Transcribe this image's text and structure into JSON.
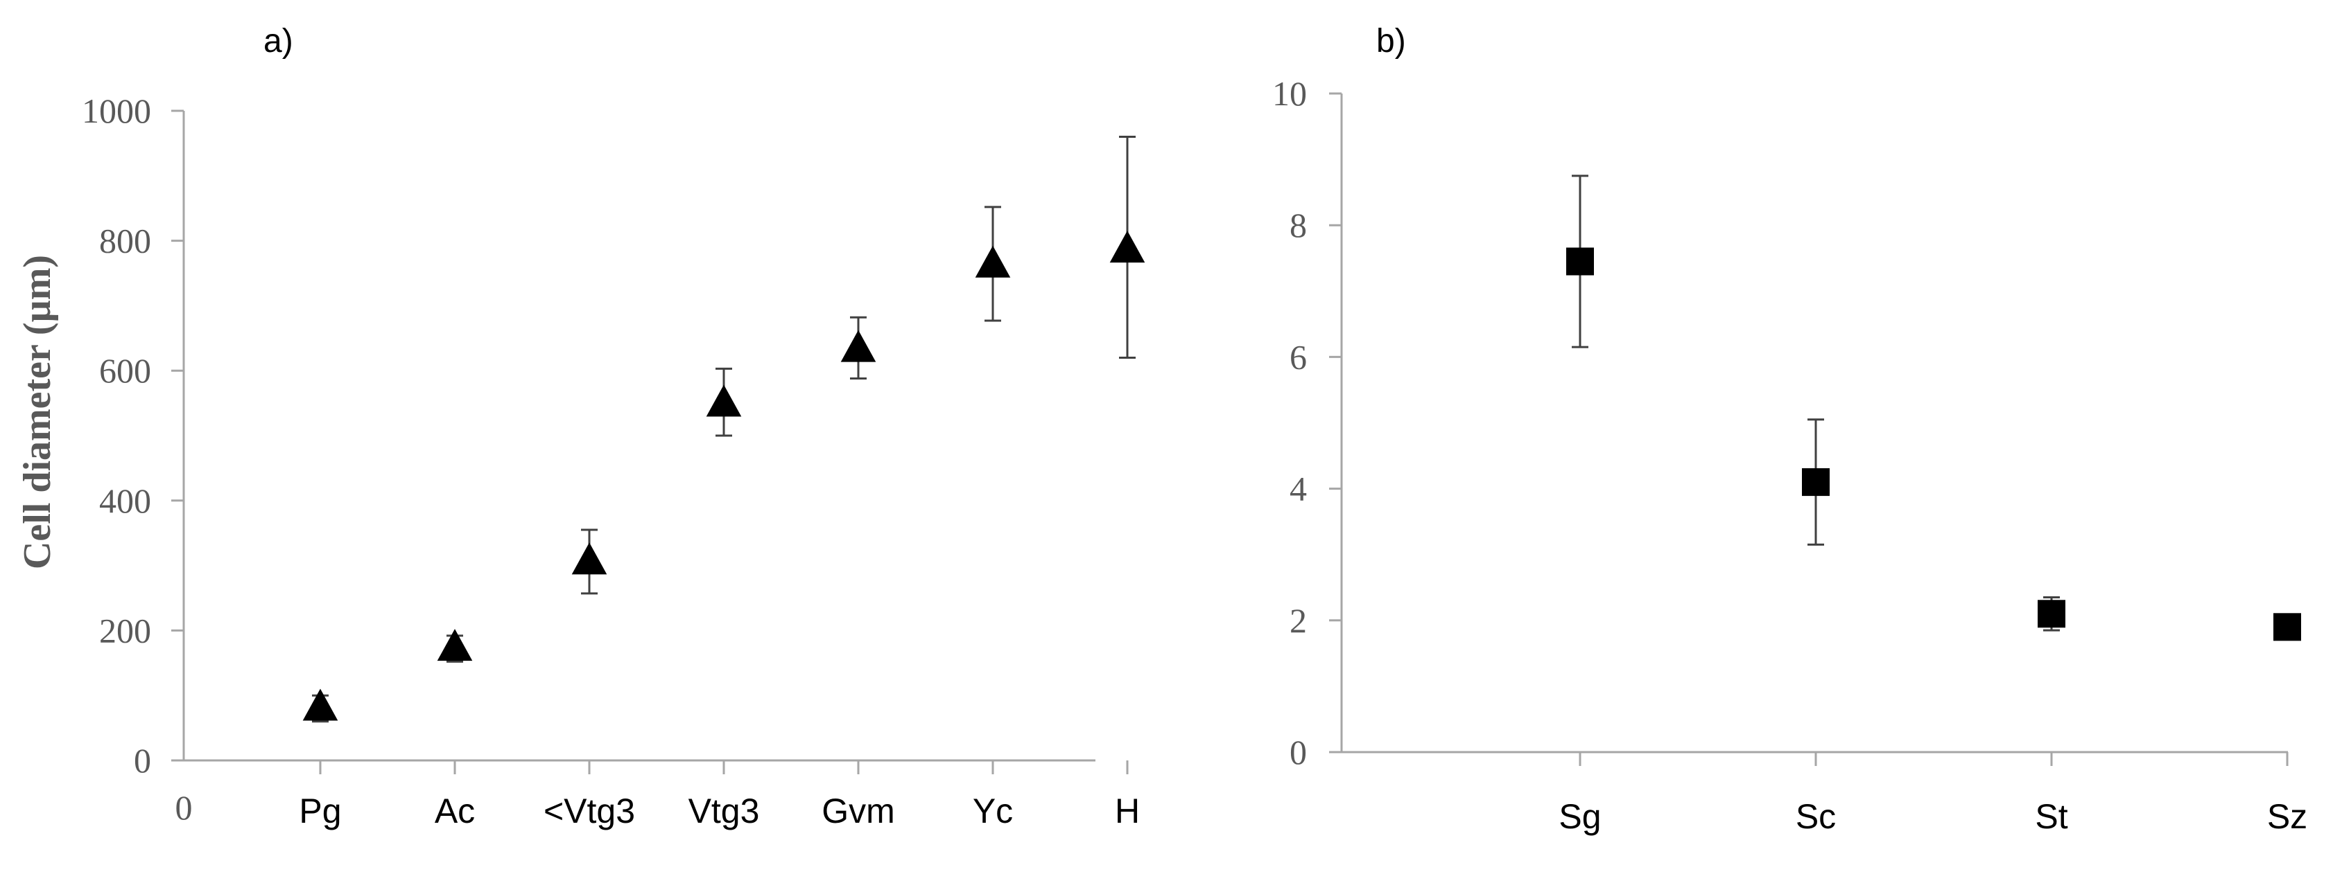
{
  "chart_data": [
    {
      "type": "scatter",
      "panel_label": "a)",
      "ylabel": "Cell diameter (µm)",
      "xlabel": "",
      "ylim": [
        0,
        1000
      ],
      "yticks": [
        "0",
        "200",
        "400",
        "600",
        "800",
        "1000"
      ],
      "x_origin_label": "0",
      "categories": [
        "Pg",
        "Ac",
        "<Vtg3",
        "Vtg3",
        "Gvm",
        "Yc",
        "H"
      ],
      "marker": "triangle",
      "series": [
        {
          "values": [
            80,
            172,
            305,
            548,
            632,
            762,
            785
          ],
          "err_low": [
            20,
            20,
            48,
            48,
            44,
            85,
            165
          ],
          "err_high": [
            20,
            20,
            50,
            55,
            50,
            90,
            175
          ]
        }
      ],
      "grid": false
    },
    {
      "type": "scatter",
      "panel_label": "b)",
      "ylabel": "",
      "xlabel": "",
      "ylim": [
        0,
        10
      ],
      "yticks": [
        "0",
        "2",
        "4",
        "6",
        "8",
        "10"
      ],
      "categories": [
        "Sg",
        "Sc",
        "St",
        "Sz"
      ],
      "marker": "square",
      "series": [
        {
          "values": [
            7.45,
            4.1,
            2.1,
            1.9
          ],
          "err_low": [
            1.3,
            0.95,
            0.25,
            0.1
          ],
          "err_high": [
            1.3,
            0.95,
            0.25,
            0.1
          ]
        }
      ],
      "grid": false
    }
  ]
}
